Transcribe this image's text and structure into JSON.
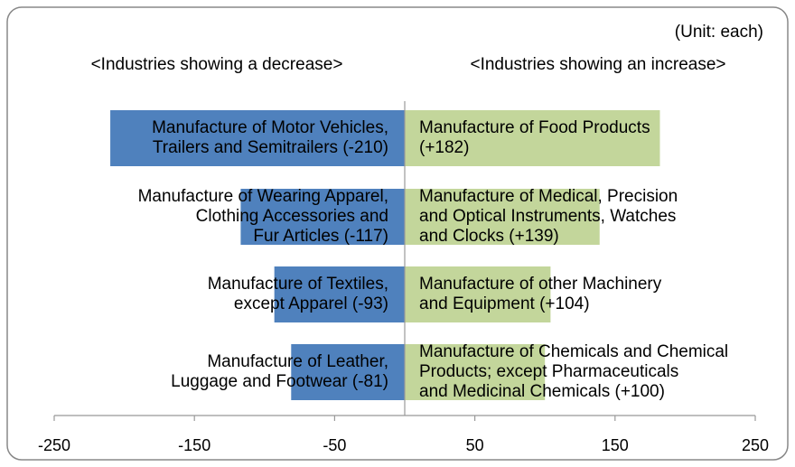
{
  "chart_data": {
    "type": "bar",
    "orientation": "horizontal",
    "subtitle": "(Unit: each)",
    "xlim": [
      -250,
      250
    ],
    "xticks": [
      -250,
      -150,
      -50,
      50,
      150,
      250
    ],
    "series": [
      {
        "name": "<Industries showing a decrease>",
        "color": "#4f81bd",
        "categories": [
          [
            "Manufacture of Motor Vehicles,",
            "Trailers and Semitrailers"
          ],
          [
            "Manufacture of Wearing Apparel,",
            "Clothing Accessories and",
            "Fur Articles"
          ],
          [
            "Manufacture of Textiles,",
            "except Apparel"
          ],
          [
            "Manufacture of Leather,",
            "Luggage and Footwear"
          ]
        ],
        "values": [
          -210,
          -117,
          -93,
          -81
        ],
        "value_labels": [
          "(-210)",
          "(-117)",
          "(-93)",
          "(-81)"
        ]
      },
      {
        "name": "<Industries showing an increase>",
        "color": "#c3d69b",
        "categories": [
          [
            "Manufacture of Food Products"
          ],
          [
            "Manufacture of Medical, Precision",
            "and Optical Instruments, Watches",
            "and Clocks"
          ],
          [
            "Manufacture of other Machinery",
            "and Equipment"
          ],
          [
            "Manufacture of Chemicals and Chemical",
            "Products; except Pharmaceuticals",
            "and Medicinal Chemicals"
          ]
        ],
        "values": [
          182,
          139,
          104,
          100
        ],
        "value_labels": [
          "(+182)",
          "(+139)",
          "(+104)",
          "(+100)"
        ]
      }
    ]
  }
}
